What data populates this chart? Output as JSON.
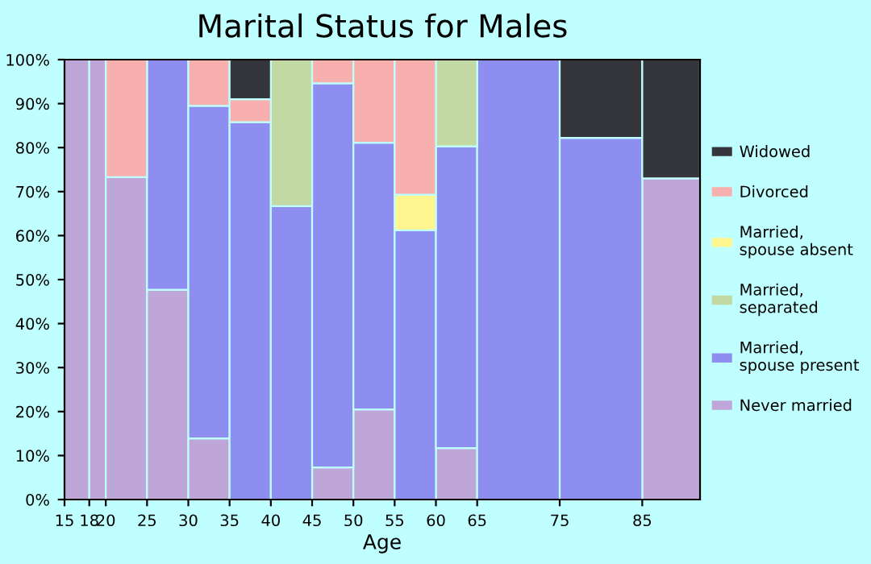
{
  "chart_data": {
    "type": "bar",
    "stacked": true,
    "title": "Marital Status for Males",
    "xlabel": "Age",
    "x": [
      16.5,
      19,
      22.5,
      27.5,
      32.5,
      37.5,
      42.5,
      47.5,
      52.5,
      57.5,
      62.5,
      70,
      80,
      88.5
    ],
    "xlim": [
      15,
      92
    ],
    "xticks": [
      15,
      18,
      20,
      25,
      30,
      35,
      40,
      45,
      50,
      55,
      60,
      65,
      75,
      85
    ],
    "ylim": [
      0,
      100
    ],
    "yticks": [
      {
        "value": 0,
        "label": "0%"
      },
      {
        "value": 10,
        "label": "10%"
      },
      {
        "value": 20,
        "label": "20%"
      },
      {
        "value": 30,
        "label": "30%"
      },
      {
        "value": 40,
        "label": "40%"
      },
      {
        "value": 50,
        "label": "50%"
      },
      {
        "value": 60,
        "label": "60%"
      },
      {
        "value": 70,
        "label": "70%"
      },
      {
        "value": 80,
        "label": "80%"
      },
      {
        "value": 90,
        "label": "90%"
      },
      {
        "value": 100,
        "label": "100%"
      }
    ],
    "grid": false,
    "legend": "right",
    "series": [
      {
        "name": "Never married",
        "color": "#bea6d8",
        "values": [
          100,
          100,
          73.3,
          47.7,
          13.9,
          0,
          0,
          7.3,
          20.5,
          0,
          11.7,
          0,
          0,
          73.0
        ]
      },
      {
        "name": "Married,\nspouse present",
        "color": "#8e8ef0",
        "values": [
          0,
          0,
          0,
          52.3,
          75.6,
          85.8,
          66.7,
          87.3,
          60.6,
          61.2,
          68.6,
          100,
          82.2,
          0
        ]
      },
      {
        "name": "Married,\nseparated",
        "color": "#c2d9a3",
        "values": [
          0,
          0,
          0,
          0,
          0,
          0,
          33.3,
          0,
          0,
          0,
          19.7,
          0,
          0,
          0
        ]
      },
      {
        "name": "Married,\nspouse absent",
        "color": "#fff68f",
        "values": [
          0,
          0,
          0,
          0,
          0,
          0,
          0,
          0,
          0,
          8.1,
          0,
          0,
          0,
          0
        ]
      },
      {
        "name": "Divorced",
        "color": "#f8b0ae",
        "values": [
          0,
          0,
          26.7,
          0,
          10.5,
          5.2,
          0,
          5.4,
          18.9,
          30.7,
          0,
          0,
          0,
          0
        ]
      },
      {
        "name": "Widowed",
        "color": "#35363b",
        "values": [
          0,
          0,
          0,
          0,
          0,
          9.0,
          0,
          0,
          0,
          0,
          0,
          0,
          17.8,
          27.0
        ]
      }
    ]
  }
}
